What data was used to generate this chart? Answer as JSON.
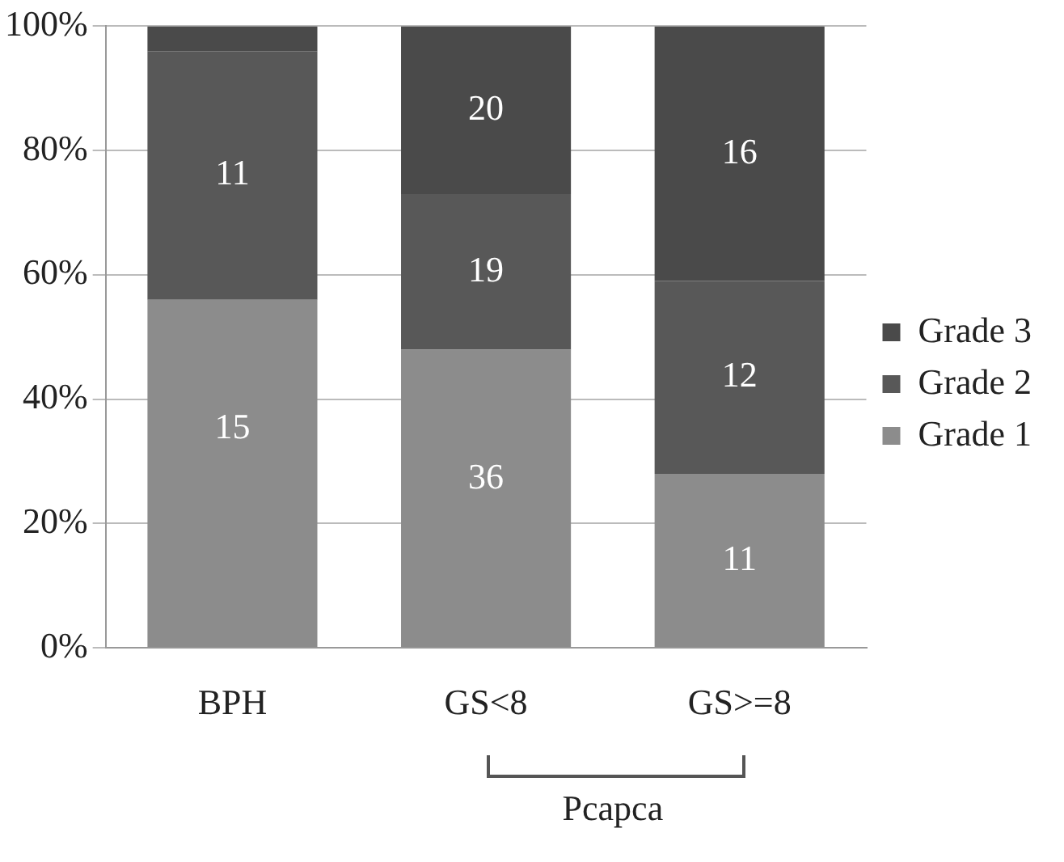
{
  "chart_data": {
    "type": "bar",
    "stacked": true,
    "categories": [
      "BPH",
      "GS<8",
      "GS>=8"
    ],
    "series": [
      {
        "name": "Grade 1",
        "color": "#8c8c8c",
        "values": [
          56,
          48,
          28
        ]
      },
      {
        "name": "Grade 2",
        "color": "#585858",
        "values": [
          40,
          25,
          31
        ]
      },
      {
        "name": "Grade 3",
        "color": "#4a4a4a",
        "values": [
          4,
          27,
          41
        ]
      }
    ],
    "ylim": [
      0,
      100
    ],
    "yticks": [
      {
        "value": 0,
        "label": "0%"
      },
      {
        "value": 20,
        "label": "20%"
      },
      {
        "value": 40,
        "label": "40%"
      },
      {
        "value": 60,
        "label": "60%"
      },
      {
        "value": 80,
        "label": "80%"
      },
      {
        "value": 100,
        "label": "100%"
      }
    ],
    "grid": "y",
    "legend": "right",
    "annotations": [
      {
        "text": "15",
        "x": "BPH",
        "y": 56
      },
      {
        "text": "11",
        "x": "BPH",
        "y": 96
      },
      {
        "text": "36",
        "x": "GS<8",
        "y": 48
      },
      {
        "text": "19",
        "x": "GS<8",
        "y": 73
      },
      {
        "text": "20",
        "x": "GS<8",
        "y": 100
      },
      {
        "text": "11",
        "x": "GS>=8",
        "y": 28
      },
      {
        "text": "12",
        "x": "GS>=8",
        "y": 59
      },
      {
        "text": "16",
        "x": "GS>=8",
        "y": 100
      },
      "Pcapca"
    ]
  }
}
